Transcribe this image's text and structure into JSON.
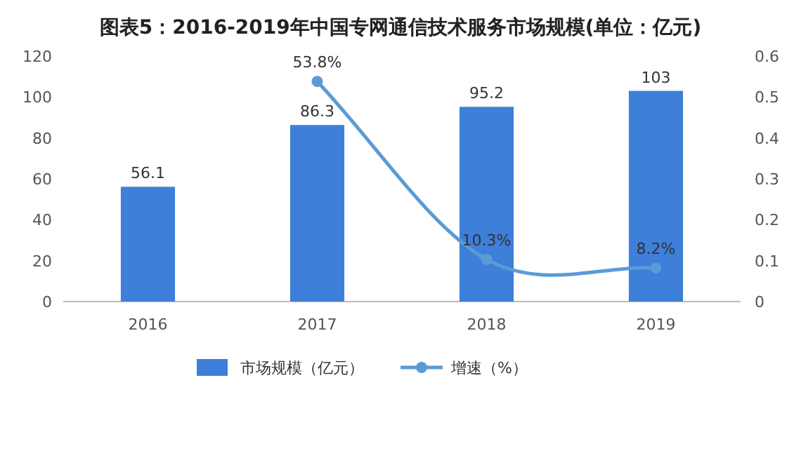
{
  "chart_data": {
    "type": "bar",
    "title": "图表5：2016-2019年中国专网通信技术服务市场规模(单位：亿元)",
    "categories": [
      "2016",
      "2017",
      "2018",
      "2019"
    ],
    "series": [
      {
        "name": "市场规模（亿元）",
        "color": "#3d7fd9",
        "values": [
          56.1,
          86.3,
          95.2,
          103
        ]
      },
      {
        "name": "增速（%）",
        "type": "line",
        "axis": "y2",
        "color": "#5b9bd5",
        "marker": "circle",
        "values": [
          null,
          0.538,
          0.103,
          0.082
        ],
        "value_labels": [
          null,
          "53.8%",
          "10.3%",
          "8.2%"
        ]
      }
    ],
    "data_labels": true,
    "ylim": [
      0,
      120
    ],
    "yticks": [
      0,
      20,
      40,
      60,
      80,
      100,
      120
    ],
    "y2lim": [
      0,
      0.6
    ],
    "y2ticks": [
      0,
      0.1,
      0.2,
      0.3,
      0.4,
      0.5,
      0.6
    ],
    "legend": "bottom"
  }
}
